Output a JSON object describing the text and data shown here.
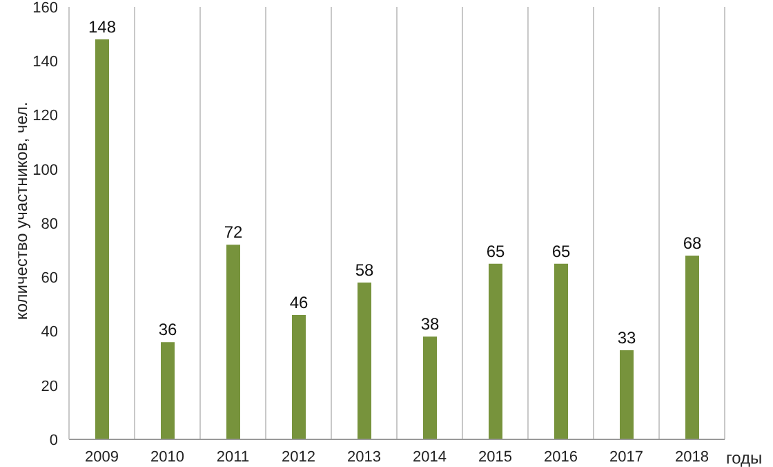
{
  "chart_data": {
    "type": "bar",
    "ylabel": "количество участников, чел.",
    "xlabel": "годы",
    "categories": [
      "2009",
      "2010",
      "2011",
      "2012",
      "2013",
      "2014",
      "2015",
      "2016",
      "2017",
      "2018"
    ],
    "values": [
      148,
      36,
      72,
      46,
      58,
      38,
      65,
      65,
      33,
      68
    ],
    "color": "#77933c",
    "ylim": [
      0,
      160
    ],
    "yticks": [
      0,
      20,
      40,
      60,
      80,
      100,
      120,
      140,
      160
    ],
    "grid": "x",
    "data_labels": true
  }
}
